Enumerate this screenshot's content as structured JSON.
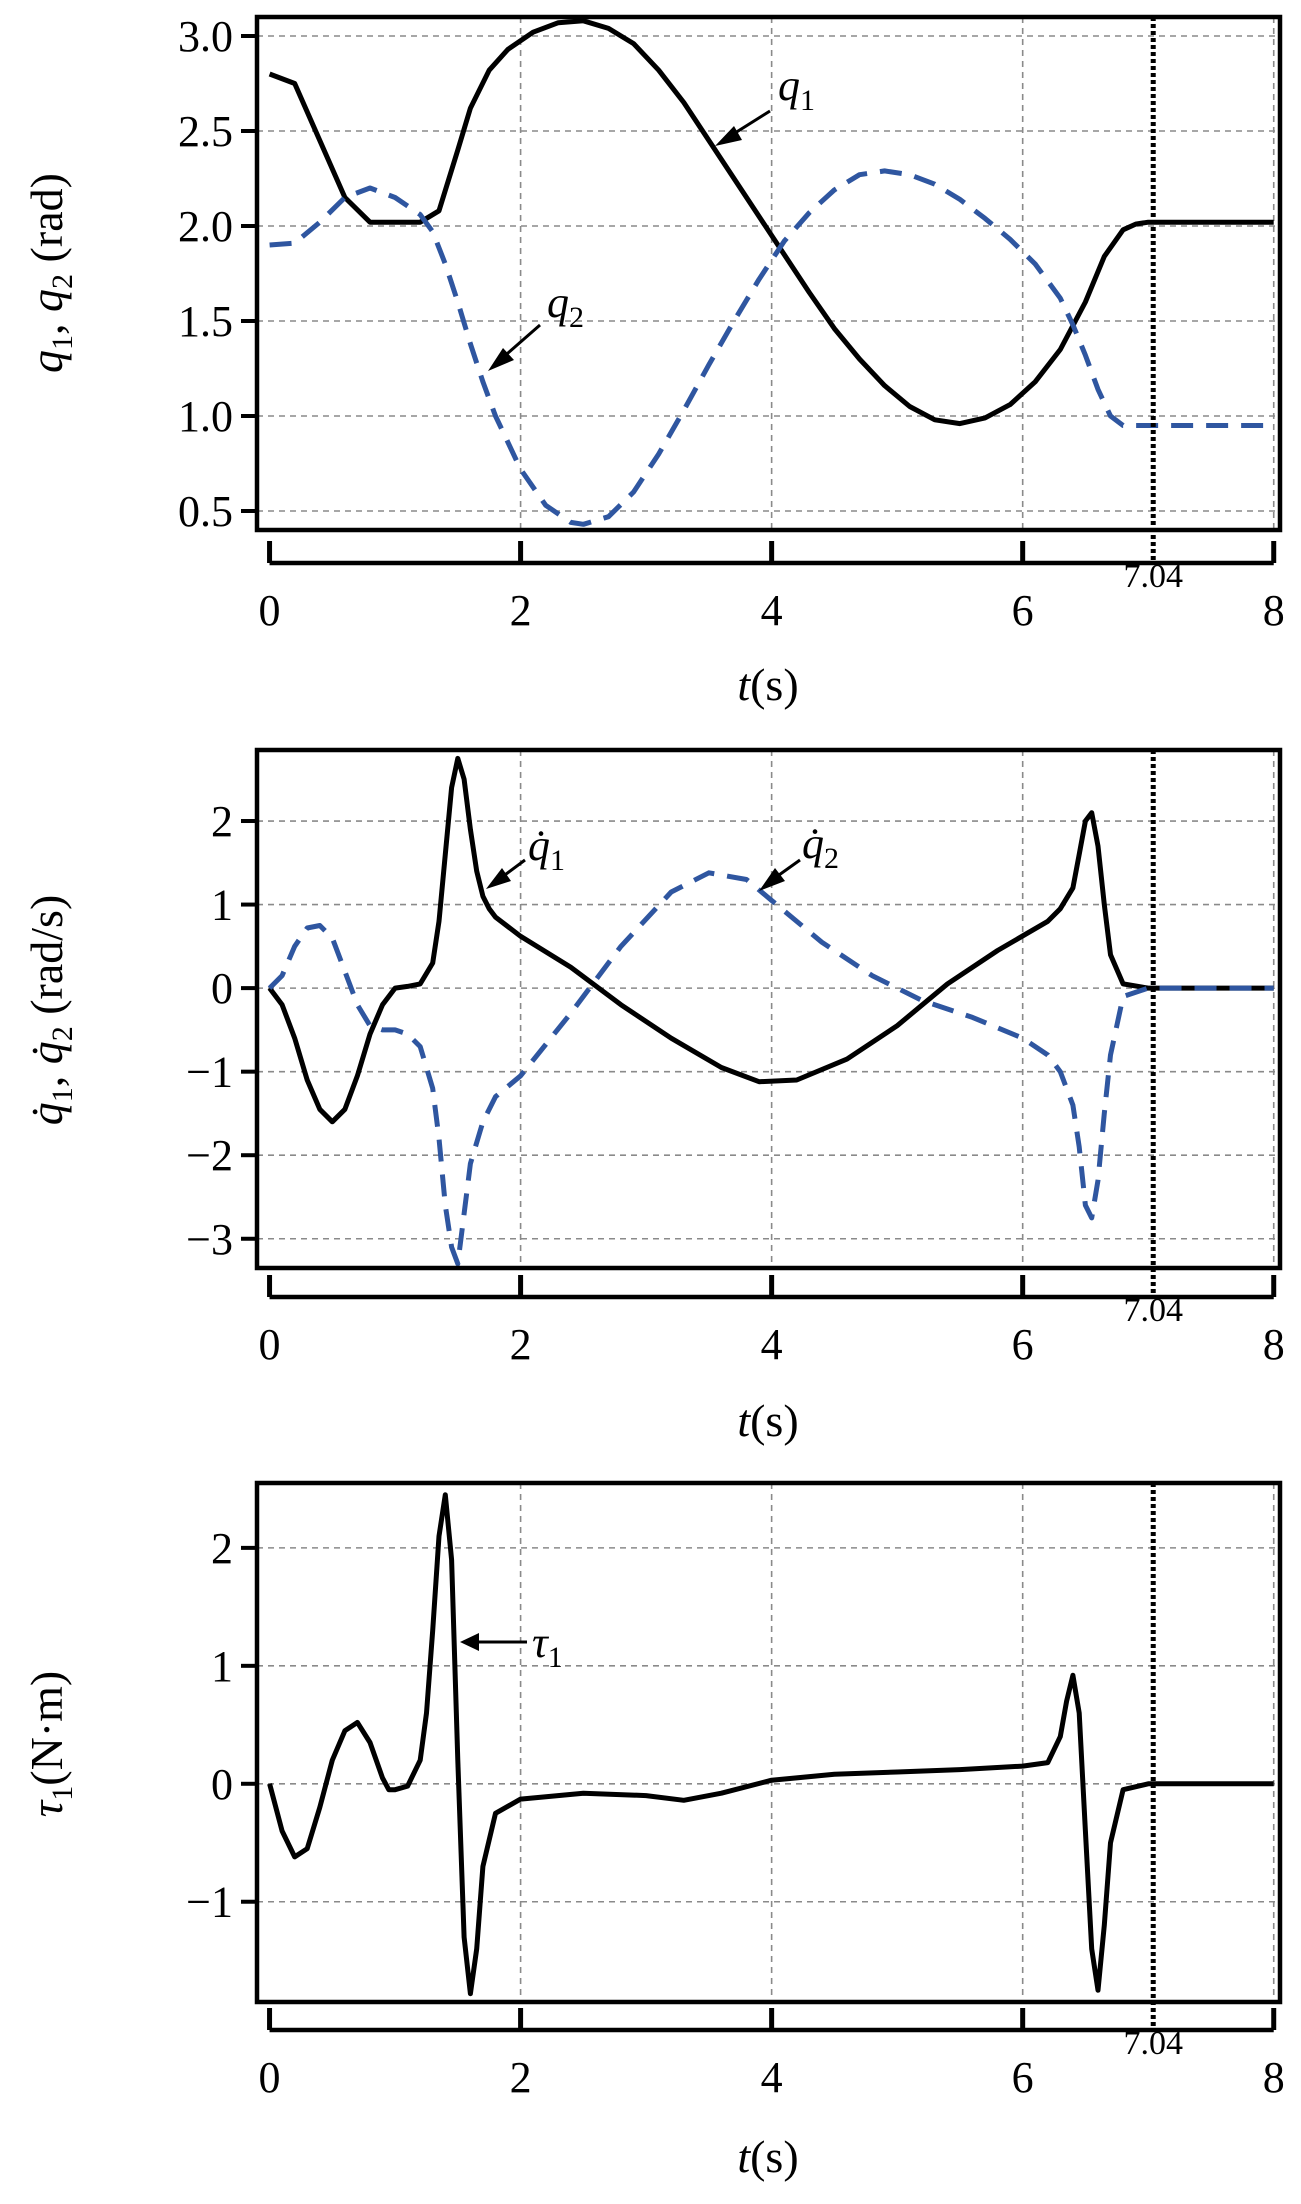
{
  "colors": {
    "series1": "#000000",
    "series2": "#2F56A0",
    "grid": "#8a8a8a",
    "marker": "#000000"
  },
  "chart_data": [
    {
      "type": "line",
      "title": "",
      "xlabel": "t(s)",
      "ylabel": "q1, q2 (rad)",
      "xlim": [
        -0.1,
        8.05
      ],
      "ylim": [
        0.4,
        3.1
      ],
      "xticks": [
        0,
        2,
        4,
        6,
        8
      ],
      "xtick_labels": [
        "0",
        "2",
        "4",
        "6",
        "8"
      ],
      "yticks": [
        0.5,
        1.0,
        1.5,
        2.0,
        2.5,
        3.0
      ],
      "ytick_labels": [
        "0.5",
        "1.0",
        "1.5",
        "2.0",
        "2.5",
        "3.0"
      ],
      "grid": true,
      "marker_line": {
        "x": 7.04,
        "label": "7.04"
      },
      "series": [
        {
          "name": "q1",
          "label": "q",
          "sub": "1",
          "style": "solid",
          "color_key": "series1",
          "x": [
            0,
            0.2,
            0.4,
            0.6,
            0.8,
            1.0,
            1.2,
            1.35,
            1.5,
            1.6,
            1.75,
            1.9,
            2.1,
            2.3,
            2.5,
            2.7,
            2.9,
            3.1,
            3.3,
            3.5,
            3.7,
            3.9,
            4.1,
            4.3,
            4.5,
            4.7,
            4.9,
            5.1,
            5.3,
            5.5,
            5.7,
            5.9,
            6.1,
            6.3,
            6.5,
            6.65,
            6.8,
            6.9,
            7.0,
            7.2,
            7.5,
            8.0
          ],
          "values": [
            2.8,
            2.75,
            2.45,
            2.15,
            2.02,
            2.02,
            2.02,
            2.08,
            2.4,
            2.62,
            2.82,
            2.93,
            3.02,
            3.07,
            3.08,
            3.04,
            2.96,
            2.82,
            2.65,
            2.45,
            2.25,
            2.05,
            1.85,
            1.65,
            1.46,
            1.3,
            1.16,
            1.05,
            0.98,
            0.96,
            0.99,
            1.06,
            1.18,
            1.35,
            1.6,
            1.84,
            1.98,
            2.01,
            2.02,
            2.02,
            2.02,
            2.02
          ]
        },
        {
          "name": "q2",
          "label": "q",
          "sub": "2",
          "style": "dashed",
          "color_key": "series2",
          "x": [
            0,
            0.2,
            0.4,
            0.6,
            0.8,
            1.0,
            1.2,
            1.3,
            1.4,
            1.5,
            1.6,
            1.7,
            1.8,
            2.0,
            2.2,
            2.4,
            2.5,
            2.7,
            2.9,
            3.1,
            3.3,
            3.5,
            3.7,
            3.9,
            4.1,
            4.3,
            4.5,
            4.7,
            4.9,
            5.1,
            5.3,
            5.5,
            5.7,
            5.9,
            6.1,
            6.3,
            6.4,
            6.5,
            6.6,
            6.7,
            6.8,
            7.0,
            7.5,
            8.0
          ],
          "values": [
            1.9,
            1.91,
            2.02,
            2.15,
            2.2,
            2.15,
            2.06,
            1.97,
            1.8,
            1.6,
            1.38,
            1.18,
            1.0,
            0.72,
            0.53,
            0.44,
            0.43,
            0.47,
            0.6,
            0.8,
            1.03,
            1.27,
            1.5,
            1.72,
            1.92,
            2.07,
            2.19,
            2.27,
            2.29,
            2.27,
            2.22,
            2.14,
            2.04,
            1.93,
            1.8,
            1.62,
            1.48,
            1.32,
            1.14,
            1.0,
            0.95,
            0.95,
            0.95,
            0.95
          ]
        }
      ]
    },
    {
      "type": "line",
      "title": "",
      "xlabel": "t(s)",
      "ylabel": "q̇1, q̇2 (rad/s)",
      "xlim": [
        -0.1,
        8.05
      ],
      "ylim": [
        -3.35,
        2.85
      ],
      "xticks": [
        0,
        2,
        4,
        6,
        8
      ],
      "xtick_labels": [
        "0",
        "2",
        "4",
        "6",
        "8"
      ],
      "yticks": [
        -3,
        -2,
        -1,
        0,
        1,
        2
      ],
      "ytick_labels": [
        "−3",
        "−2",
        "−1",
        "0",
        "1",
        "2"
      ],
      "grid": true,
      "marker_line": {
        "x": 7.04,
        "label": "7.04"
      },
      "series": [
        {
          "name": "q1dot",
          "label": "q",
          "sub": "1",
          "style": "solid",
          "color_key": "series1",
          "x": [
            0,
            0.1,
            0.2,
            0.3,
            0.4,
            0.5,
            0.6,
            0.7,
            0.8,
            0.9,
            1.0,
            1.1,
            1.2,
            1.3,
            1.35,
            1.4,
            1.45,
            1.5,
            1.55,
            1.6,
            1.65,
            1.7,
            1.75,
            1.8,
            2.0,
            2.4,
            2.8,
            3.2,
            3.6,
            3.9,
            4.2,
            4.6,
            5.0,
            5.4,
            5.8,
            6.2,
            6.3,
            6.4,
            6.45,
            6.5,
            6.55,
            6.6,
            6.65,
            6.7,
            6.8,
            7.0,
            8.0
          ],
          "values": [
            0,
            -0.2,
            -0.6,
            -1.1,
            -1.45,
            -1.6,
            -1.45,
            -1.05,
            -0.55,
            -0.2,
            0,
            0.02,
            0.05,
            0.3,
            0.8,
            1.6,
            2.4,
            2.75,
            2.5,
            1.9,
            1.4,
            1.1,
            0.95,
            0.85,
            0.62,
            0.25,
            -0.2,
            -0.6,
            -0.95,
            -1.12,
            -1.1,
            -0.85,
            -0.45,
            0.05,
            0.45,
            0.8,
            0.95,
            1.2,
            1.6,
            2.0,
            2.1,
            1.7,
            1.0,
            0.4,
            0.05,
            0,
            0
          ]
        },
        {
          "name": "q2dot",
          "label": "q",
          "sub": "2",
          "style": "dashed",
          "color_key": "series2",
          "x": [
            0,
            0.1,
            0.2,
            0.3,
            0.4,
            0.5,
            0.6,
            0.7,
            0.8,
            0.9,
            1.0,
            1.1,
            1.2,
            1.3,
            1.35,
            1.4,
            1.45,
            1.5,
            1.55,
            1.6,
            1.7,
            1.8,
            2.0,
            2.4,
            2.8,
            3.2,
            3.5,
            3.8,
            4.0,
            4.4,
            4.8,
            5.2,
            5.6,
            6.0,
            6.2,
            6.3,
            6.4,
            6.45,
            6.5,
            6.55,
            6.6,
            6.65,
            6.7,
            6.8,
            7.0,
            8.0
          ],
          "values": [
            0,
            0.15,
            0.5,
            0.72,
            0.75,
            0.6,
            0.2,
            -0.2,
            -0.45,
            -0.5,
            -0.5,
            -0.55,
            -0.7,
            -1.2,
            -1.8,
            -2.6,
            -3.1,
            -3.3,
            -2.7,
            -2.1,
            -1.6,
            -1.3,
            -1.05,
            -0.3,
            0.5,
            1.15,
            1.38,
            1.3,
            1.05,
            0.55,
            0.15,
            -0.15,
            -0.35,
            -0.6,
            -0.8,
            -1.0,
            -1.4,
            -1.9,
            -2.6,
            -2.75,
            -2.3,
            -1.5,
            -0.8,
            -0.1,
            0,
            0
          ]
        }
      ]
    },
    {
      "type": "line",
      "title": "",
      "xlabel": "t(s)",
      "ylabel": "τ1(N·m)",
      "xlim": [
        -0.1,
        8.05
      ],
      "ylim": [
        -1.85,
        2.55
      ],
      "xticks": [
        0,
        2,
        4,
        6,
        8
      ],
      "xtick_labels": [
        "0",
        "2",
        "4",
        "6",
        "8"
      ],
      "yticks": [
        -1,
        0,
        1,
        2
      ],
      "ytick_labels": [
        "−1",
        "0",
        "1",
        "2"
      ],
      "grid": true,
      "marker_line": {
        "x": 7.04,
        "label": "7.04"
      },
      "series": [
        {
          "name": "tau1",
          "label": "τ",
          "sub": "1",
          "style": "solid",
          "color_key": "series1",
          "x": [
            0,
            0.1,
            0.2,
            0.3,
            0.4,
            0.5,
            0.6,
            0.7,
            0.8,
            0.9,
            0.95,
            1.0,
            1.1,
            1.2,
            1.25,
            1.3,
            1.35,
            1.4,
            1.45,
            1.5,
            1.55,
            1.6,
            1.65,
            1.7,
            1.8,
            2.0,
            2.5,
            3.0,
            3.3,
            3.6,
            4.0,
            4.5,
            5.0,
            5.5,
            6.0,
            6.2,
            6.3,
            6.35,
            6.4,
            6.45,
            6.5,
            6.55,
            6.6,
            6.65,
            6.7,
            6.8,
            7.0,
            8.0
          ],
          "values": [
            0,
            -0.4,
            -0.62,
            -0.55,
            -0.2,
            0.2,
            0.45,
            0.52,
            0.35,
            0.05,
            -0.05,
            -0.05,
            -0.02,
            0.2,
            0.6,
            1.3,
            2.1,
            2.45,
            1.9,
            0.2,
            -1.3,
            -1.78,
            -1.4,
            -0.7,
            -0.25,
            -0.13,
            -0.08,
            -0.1,
            -0.14,
            -0.08,
            0.03,
            0.08,
            0.1,
            0.12,
            0.15,
            0.18,
            0.4,
            0.7,
            0.92,
            0.6,
            -0.4,
            -1.4,
            -1.75,
            -1.2,
            -0.5,
            -0.05,
            0,
            0
          ]
        }
      ]
    }
  ]
}
